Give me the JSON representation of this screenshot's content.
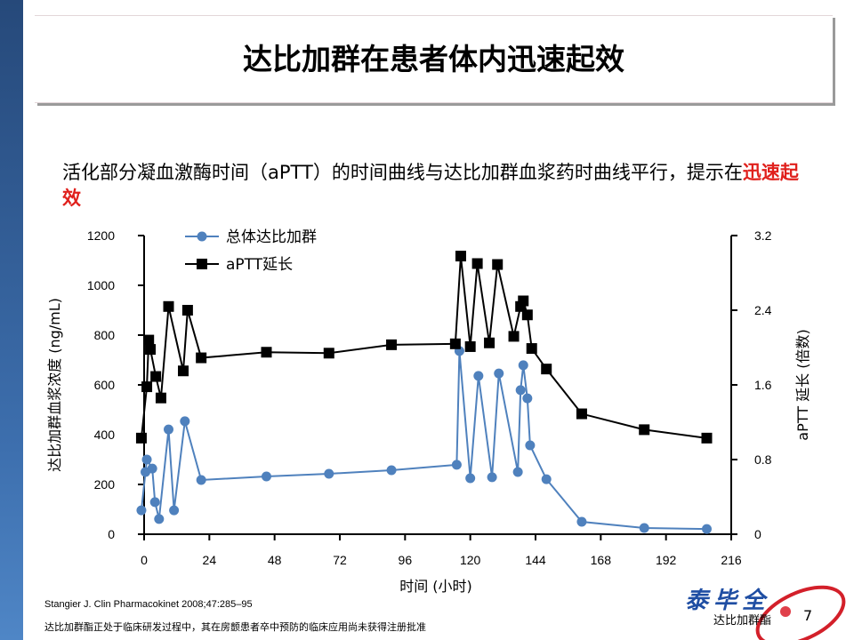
{
  "slide": {
    "title": "达比加群在患者体内迅速起效",
    "subtitle_prefix": "活化部分凝血激酶时间（aPTT）的时间曲线与达比加群血浆药时曲线平行，提示在",
    "subtitle_highlight": "迅速起效",
    "reference": "Stangier J. Clin Pharmacokinet 2008;47:285–95",
    "footnote": "达比加群酯正处于临床研发过程中，其在房颤患者卒中预防的临床应用尚未获得注册批准",
    "logo_brand": "泰毕全",
    "logo_sub": "达比加群酯",
    "page_number": "7",
    "colors": {
      "accent_red": "#e0201c",
      "series_blue": "#4f81bd",
      "series_black": "#000000",
      "strip_blue": "#3d6fae"
    }
  },
  "chart_data": {
    "type": "line",
    "xlabel": "时间 (小时)",
    "ylabel": "达比加群血浆浓度 (ng/mL)",
    "y2label": "aPTT 延长 (倍数)",
    "xlim": [
      0,
      216
    ],
    "ylim": [
      0,
      1200
    ],
    "y2lim": [
      0,
      3.2
    ],
    "x_ticks": [
      "0",
      "24",
      "48",
      "72",
      "96",
      "120",
      "144",
      "168",
      "192",
      "216"
    ],
    "y_ticks": [
      "0",
      "200",
      "400",
      "600",
      "800",
      "1000",
      "1200"
    ],
    "y2_ticks": [
      "0",
      "0.8",
      "1.6",
      "2.4",
      "3.2"
    ],
    "grid": false,
    "legend": "top-left",
    "series": [
      {
        "name": "总体达比加群",
        "axis": "left",
        "marker": "circle",
        "x": [
          -1,
          0.5,
          1,
          3,
          4,
          5.5,
          9,
          11,
          15,
          21,
          45,
          68,
          91,
          115,
          116,
          120,
          123,
          128,
          130.5,
          137.5,
          138.5,
          139.5,
          141,
          142,
          148,
          161,
          184,
          207
        ],
        "y": [
          96,
          250,
          300,
          264,
          129,
          61,
          421,
          96,
          454,
          218,
          232,
          243,
          257,
          279,
          736,
          225,
          636,
          229,
          646,
          250,
          579,
          679,
          546,
          357,
          221,
          50,
          25,
          21
        ]
      },
      {
        "name": "aPTT延长",
        "axis": "right",
        "marker": "square",
        "x": [
          -1,
          1,
          1.7,
          2.3,
          4.3,
          6.2,
          9,
          14.4,
          16,
          21,
          45,
          68,
          91,
          114.5,
          116.5,
          120,
          122.6,
          127,
          130,
          136,
          138.5,
          139.5,
          141,
          142.6,
          148,
          161,
          184,
          207
        ],
        "y": [
          1.03,
          1.58,
          2.08,
          1.98,
          1.69,
          1.46,
          2.44,
          1.75,
          2.4,
          1.89,
          1.95,
          1.94,
          2.03,
          2.04,
          2.98,
          2.01,
          2.9,
          2.05,
          2.89,
          2.12,
          2.44,
          2.5,
          2.35,
          1.99,
          1.77,
          1.29,
          1.12,
          1.03
        ]
      }
    ]
  }
}
